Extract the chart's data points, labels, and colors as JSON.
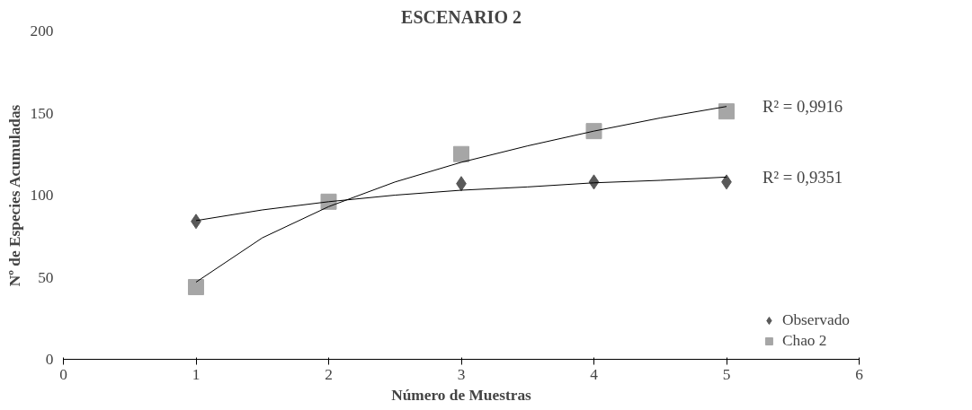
{
  "chart_data": {
    "type": "scatter",
    "title": "ESCENARIO 2",
    "xlabel": "Número de Muestras",
    "ylabel": "Nº de Especies Acumuladas",
    "xlim": [
      0,
      6
    ],
    "xticks": [
      0,
      1,
      2,
      3,
      4,
      5,
      6
    ],
    "ylim": [
      0,
      200
    ],
    "yticks": [
      0,
      50,
      100,
      150,
      200
    ],
    "grid": false,
    "legend": "bottom right",
    "series": [
      {
        "name": "Observado",
        "color": "#595959",
        "marker": "diamond",
        "x": [
          1,
          2,
          3,
          4,
          5
        ],
        "values": [
          84,
          null,
          107,
          108,
          108
        ]
      },
      {
        "name": "Chao 2",
        "color": "#a6a6a6",
        "marker": "square",
        "x": [
          1,
          2,
          3,
          4,
          5
        ],
        "values": [
          44,
          96,
          125,
          139,
          151
        ]
      },
      {
        "type": "line",
        "color": "#000000",
        "x": [
          1,
          1.5,
          2,
          2.5,
          3,
          3.5,
          4,
          4.5,
          5
        ],
        "values": [
          84.5,
          91,
          96,
          100,
          103,
          105,
          107.5,
          109,
          111
        ]
      },
      {
        "type": "line",
        "color": "#000000",
        "x": [
          1,
          1.5,
          2,
          2.5,
          3,
          3.5,
          4,
          4.5,
          5
        ],
        "values": [
          47,
          74,
          93,
          108,
          120,
          130,
          139,
          147,
          154
        ]
      }
    ],
    "annotations": [
      "R² = 0,9916",
      "R² = 0,9351"
    ]
  }
}
